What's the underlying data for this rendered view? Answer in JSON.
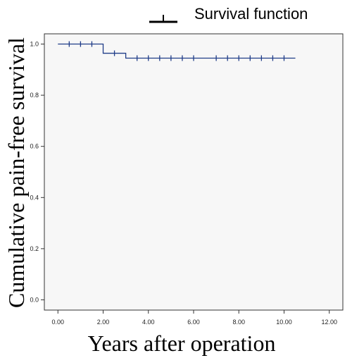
{
  "chart_data": {
    "type": "line",
    "title": "",
    "xlabel": "Years after operation",
    "ylabel": "Cumulative pain-free survival",
    "xlim": [
      -0.6,
      12.6
    ],
    "ylim": [
      -0.04,
      1.04
    ],
    "x_ticks": [
      0,
      2,
      4,
      6,
      8,
      10,
      12
    ],
    "x_tick_labels": [
      "0.00",
      "2.00",
      "4.00",
      "6.00",
      "8.00",
      "10.00",
      "12.00"
    ],
    "y_ticks": [
      0,
      0.2,
      0.4,
      0.6,
      0.8,
      1.0
    ],
    "y_tick_labels": [
      "0.0",
      "0.2",
      "0.4",
      "0.6",
      "0.8",
      "1.0"
    ],
    "grid": false,
    "legend_position": "top",
    "series": [
      {
        "name": "Survival function",
        "color": "#1f3c88",
        "step": [
          [
            0.0,
            1.0
          ],
          [
            2.0,
            0.964
          ],
          [
            3.0,
            0.945
          ],
          [
            10.5,
            0.945
          ]
        ],
        "censored": [
          [
            0.5,
            1.0
          ],
          [
            1.0,
            1.0
          ],
          [
            1.5,
            1.0
          ],
          [
            2.5,
            0.964
          ],
          [
            3.5,
            0.945
          ],
          [
            4.0,
            0.945
          ],
          [
            4.5,
            0.945
          ],
          [
            5.0,
            0.945
          ],
          [
            5.5,
            0.945
          ],
          [
            6.0,
            0.945
          ],
          [
            7.0,
            0.945
          ],
          [
            7.5,
            0.945
          ],
          [
            8.0,
            0.945
          ],
          [
            8.5,
            0.945
          ],
          [
            9.0,
            0.945
          ],
          [
            9.5,
            0.945
          ],
          [
            10.0,
            0.945
          ]
        ]
      }
    ]
  }
}
